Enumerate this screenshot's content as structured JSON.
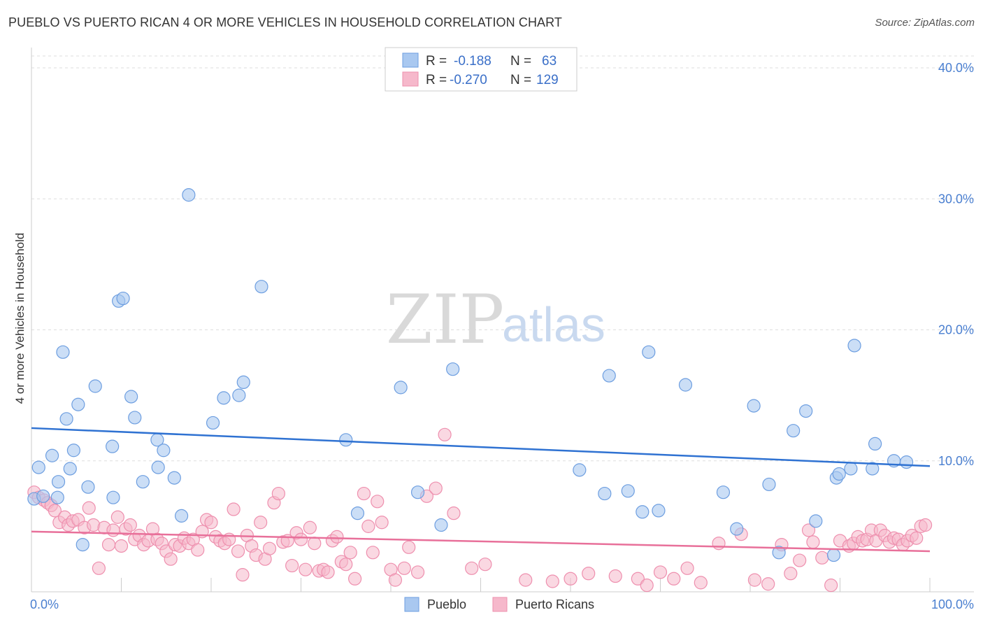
{
  "title": "PUEBLO VS PUERTO RICAN 4 OR MORE VEHICLES IN HOUSEHOLD CORRELATION CHART",
  "source": "Source: ZipAtlas.com",
  "watermark": {
    "part1": "ZIP",
    "part2": "atlas"
  },
  "legend": {
    "r_label": "R =",
    "n_label": "N =",
    "entries": [
      {
        "name": "Pueblo",
        "r": "-0.188",
        "n": "63"
      },
      {
        "name": "Puerto Ricans",
        "r": "-0.270",
        "n": "129"
      }
    ]
  },
  "colors": {
    "pueblo_fill": "#a9c8f0",
    "pueblo_stroke": "#6d9ee0",
    "pueblo_line": "#2f72d2",
    "pr_fill": "#f6b8cb",
    "pr_stroke": "#ee8fae",
    "pr_line": "#e8709a",
    "tick_color": "#4a7fd0",
    "grid": "#dddddd"
  },
  "chart_data": {
    "type": "scatter",
    "title": "PUEBLO VS PUERTO RICAN 4 OR MORE VEHICLES IN HOUSEHOLD CORRELATION CHART",
    "xlabel": "",
    "ylabel": "4 or more Vehicles in Household",
    "xlim": [
      0,
      100
    ],
    "ylim": [
      0,
      40
    ],
    "x_tick_labels": [
      "0.0%",
      "100.0%"
    ],
    "y_ticks": [
      10,
      20,
      30,
      40
    ],
    "y_tick_labels": [
      "10.0%",
      "20.0%",
      "30.0%",
      "40.0%"
    ],
    "grid": true,
    "series": [
      {
        "name": "Pueblo",
        "trend": {
          "x": [
            0,
            100
          ],
          "y": [
            12.5,
            9.6
          ]
        },
        "points": [
          [
            0.3,
            7.1
          ],
          [
            1.3,
            7.3
          ],
          [
            2.9,
            7.2
          ],
          [
            0.8,
            9.5
          ],
          [
            2.3,
            10.4
          ],
          [
            3.0,
            8.4
          ],
          [
            3.5,
            18.3
          ],
          [
            3.9,
            13.2
          ],
          [
            4.3,
            9.4
          ],
          [
            4.7,
            10.8
          ],
          [
            5.2,
            14.3
          ],
          [
            5.7,
            3.6
          ],
          [
            6.3,
            8.0
          ],
          [
            7.1,
            15.7
          ],
          [
            9.0,
            11.1
          ],
          [
            9.1,
            7.2
          ],
          [
            9.7,
            22.2
          ],
          [
            10.2,
            22.4
          ],
          [
            11.1,
            14.9
          ],
          [
            11.5,
            13.3
          ],
          [
            12.4,
            8.4
          ],
          [
            14.0,
            11.6
          ],
          [
            14.1,
            9.5
          ],
          [
            14.7,
            10.8
          ],
          [
            15.9,
            8.7
          ],
          [
            16.7,
            5.8
          ],
          [
            17.5,
            30.3
          ],
          [
            20.2,
            12.9
          ],
          [
            21.4,
            14.8
          ],
          [
            23.1,
            15.0
          ],
          [
            23.6,
            16.0
          ],
          [
            25.6,
            23.3
          ],
          [
            35.0,
            11.6
          ],
          [
            36.3,
            6.0
          ],
          [
            41.1,
            15.6
          ],
          [
            43.0,
            7.6
          ],
          [
            45.6,
            5.1
          ],
          [
            46.9,
            17.0
          ],
          [
            61.0,
            9.3
          ],
          [
            63.8,
            7.5
          ],
          [
            64.3,
            16.5
          ],
          [
            66.4,
            7.7
          ],
          [
            68.0,
            6.1
          ],
          [
            68.7,
            18.3
          ],
          [
            69.8,
            6.2
          ],
          [
            72.8,
            15.8
          ],
          [
            77.0,
            7.6
          ],
          [
            78.5,
            4.8
          ],
          [
            80.4,
            14.2
          ],
          [
            82.1,
            8.2
          ],
          [
            83.2,
            3.0
          ],
          [
            84.8,
            12.3
          ],
          [
            86.2,
            13.8
          ],
          [
            87.3,
            5.4
          ],
          [
            89.3,
            2.8
          ],
          [
            89.6,
            8.7
          ],
          [
            89.9,
            9.0
          ],
          [
            91.2,
            9.4
          ],
          [
            91.6,
            18.8
          ],
          [
            93.6,
            9.4
          ],
          [
            93.9,
            11.3
          ],
          [
            96.0,
            10.0
          ],
          [
            97.4,
            9.9
          ]
        ]
      },
      {
        "name": "Puerto Ricans",
        "trend": {
          "x": [
            0,
            100
          ],
          "y": [
            4.6,
            3.1
          ]
        },
        "points": [
          [
            0.3,
            7.6
          ],
          [
            0.8,
            7.2
          ],
          [
            1.4,
            7.0
          ],
          [
            1.8,
            6.8
          ],
          [
            2.2,
            6.6
          ],
          [
            2.6,
            6.2
          ],
          [
            3.1,
            5.3
          ],
          [
            3.7,
            5.7
          ],
          [
            4.1,
            5.1
          ],
          [
            4.6,
            5.4
          ],
          [
            5.2,
            5.5
          ],
          [
            5.9,
            4.9
          ],
          [
            6.4,
            6.4
          ],
          [
            6.9,
            5.1
          ],
          [
            7.5,
            1.8
          ],
          [
            8.1,
            4.9
          ],
          [
            8.6,
            3.6
          ],
          [
            9.1,
            4.7
          ],
          [
            9.6,
            5.7
          ],
          [
            10.0,
            3.5
          ],
          [
            10.5,
            4.8
          ],
          [
            11.0,
            5.1
          ],
          [
            11.5,
            4.0
          ],
          [
            12.0,
            4.3
          ],
          [
            12.5,
            3.6
          ],
          [
            13.0,
            3.9
          ],
          [
            13.5,
            4.8
          ],
          [
            14.0,
            4.0
          ],
          [
            14.5,
            3.7
          ],
          [
            15.0,
            3.1
          ],
          [
            15.5,
            2.5
          ],
          [
            16.0,
            3.6
          ],
          [
            16.5,
            3.5
          ],
          [
            17.0,
            4.1
          ],
          [
            17.5,
            3.7
          ],
          [
            18.0,
            4.0
          ],
          [
            18.5,
            3.2
          ],
          [
            19.0,
            4.6
          ],
          [
            19.5,
            5.5
          ],
          [
            20.0,
            5.3
          ],
          [
            20.5,
            4.2
          ],
          [
            21.0,
            3.9
          ],
          [
            21.5,
            3.7
          ],
          [
            22.0,
            4.0
          ],
          [
            22.5,
            6.3
          ],
          [
            23.0,
            3.1
          ],
          [
            23.5,
            1.3
          ],
          [
            24.0,
            4.3
          ],
          [
            24.5,
            3.5
          ],
          [
            25.0,
            2.8
          ],
          [
            25.5,
            5.3
          ],
          [
            26.0,
            2.5
          ],
          [
            26.5,
            3.3
          ],
          [
            27.0,
            6.8
          ],
          [
            27.5,
            7.5
          ],
          [
            28.0,
            3.8
          ],
          [
            28.5,
            3.9
          ],
          [
            29.0,
            2.0
          ],
          [
            29.5,
            4.5
          ],
          [
            30.0,
            4.0
          ],
          [
            30.5,
            1.7
          ],
          [
            31.0,
            4.9
          ],
          [
            31.5,
            3.7
          ],
          [
            32.0,
            1.6
          ],
          [
            32.5,
            1.7
          ],
          [
            33.0,
            1.5
          ],
          [
            33.5,
            3.9
          ],
          [
            34.0,
            4.2
          ],
          [
            34.5,
            2.3
          ],
          [
            35.0,
            2.1
          ],
          [
            35.5,
            3.0
          ],
          [
            36.0,
            1.0
          ],
          [
            37.0,
            7.5
          ],
          [
            37.5,
            5.0
          ],
          [
            38.0,
            3.0
          ],
          [
            38.5,
            6.9
          ],
          [
            39.0,
            5.3
          ],
          [
            40.0,
            1.7
          ],
          [
            40.5,
            0.9
          ],
          [
            41.5,
            1.8
          ],
          [
            42.0,
            3.4
          ],
          [
            43.0,
            1.5
          ],
          [
            44.0,
            7.3
          ],
          [
            45.0,
            7.9
          ],
          [
            46.0,
            12.0
          ],
          [
            47.0,
            6.0
          ],
          [
            49.0,
            1.8
          ],
          [
            50.5,
            2.1
          ],
          [
            55.0,
            0.9
          ],
          [
            58.0,
            0.8
          ],
          [
            60.0,
            1.0
          ],
          [
            62.0,
            1.4
          ],
          [
            65.0,
            1.2
          ],
          [
            67.5,
            1.0
          ],
          [
            68.5,
            0.5
          ],
          [
            70.0,
            1.5
          ],
          [
            71.5,
            1.0
          ],
          [
            73.0,
            1.8
          ],
          [
            74.5,
            0.7
          ],
          [
            76.5,
            3.7
          ],
          [
            79.0,
            4.4
          ],
          [
            80.5,
            0.9
          ],
          [
            82.0,
            0.6
          ],
          [
            83.5,
            3.6
          ],
          [
            84.5,
            1.4
          ],
          [
            85.5,
            2.4
          ],
          [
            86.5,
            4.7
          ],
          [
            87.0,
            3.8
          ],
          [
            88.0,
            2.6
          ],
          [
            89.0,
            0.5
          ],
          [
            90.0,
            3.9
          ],
          [
            91.0,
            3.5
          ],
          [
            91.5,
            3.7
          ],
          [
            92.0,
            4.2
          ],
          [
            92.5,
            3.9
          ],
          [
            93.0,
            4.0
          ],
          [
            93.5,
            4.7
          ],
          [
            94.0,
            3.9
          ],
          [
            94.5,
            4.7
          ],
          [
            95.0,
            4.3
          ],
          [
            95.5,
            3.8
          ],
          [
            96.0,
            4.1
          ],
          [
            96.5,
            4.0
          ],
          [
            97.0,
            3.6
          ],
          [
            97.5,
            3.9
          ],
          [
            98.0,
            4.3
          ],
          [
            98.5,
            4.1
          ],
          [
            99.0,
            5.0
          ],
          [
            99.5,
            5.1
          ]
        ]
      }
    ]
  }
}
